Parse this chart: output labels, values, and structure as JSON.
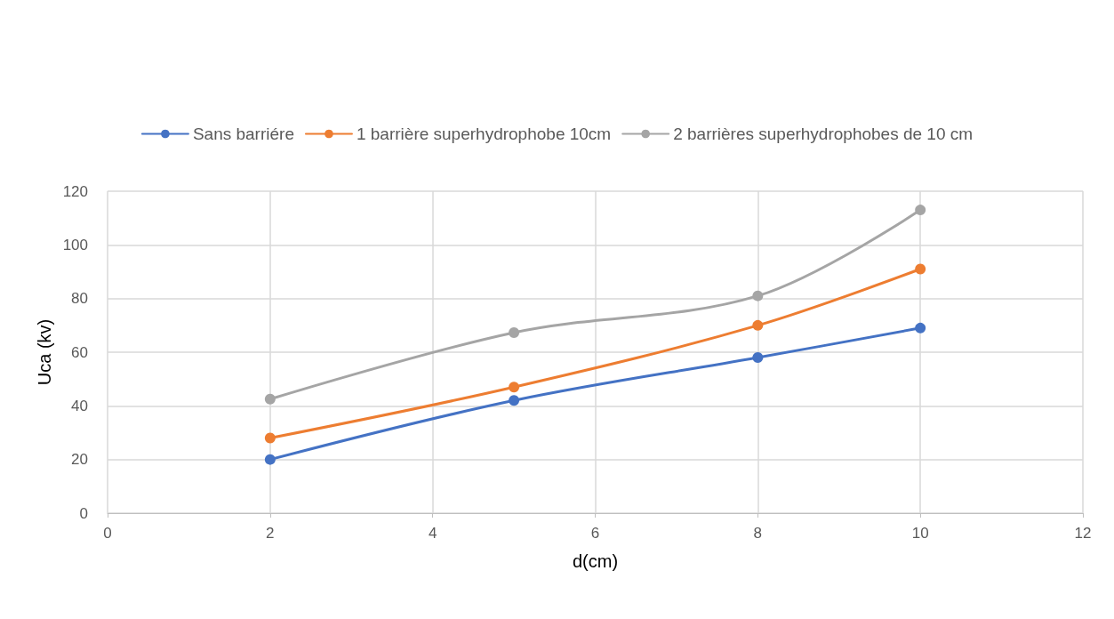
{
  "chart_data": {
    "type": "line",
    "xlabel": "d(cm)",
    "ylabel": "Uca (kv)",
    "x": [
      2,
      5,
      8,
      10
    ],
    "series": [
      {
        "name": "Sans barriére",
        "color": "#4472c4",
        "values": [
          20,
          42,
          58,
          69
        ]
      },
      {
        "name": "1 barrière superhydrophobe 10cm",
        "color": "#ed7d31",
        "values": [
          28,
          47,
          70,
          91
        ]
      },
      {
        "name": "2 barrières superhydrophobes de 10 cm",
        "color": "#a5a5a5",
        "values": [
          42.5,
          67.3,
          81,
          113
        ]
      }
    ],
    "xlim": [
      0,
      12
    ],
    "xticks": [
      0,
      2,
      4,
      6,
      8,
      10,
      12
    ],
    "ylim": [
      0,
      120
    ],
    "yticks": [
      0,
      20,
      40,
      60,
      80,
      100,
      120
    ],
    "grid": true,
    "legend": "top",
    "marker": "circle",
    "line_style": "solid"
  }
}
